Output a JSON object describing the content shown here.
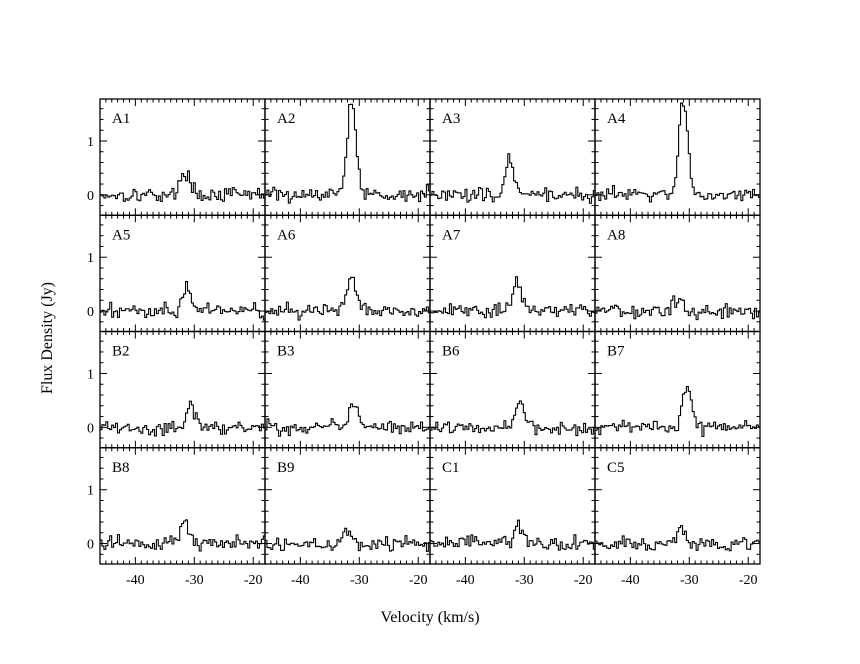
{
  "chart_data": {
    "type": "line",
    "style": "step",
    "xlabel": "Velocity (km/s)",
    "ylabel": "Flux Density (Jy)",
    "xlim": [
      -46,
      -18
    ],
    "ylim": [
      -0.38,
      1.78
    ],
    "xticks": [
      -40,
      -30,
      -20
    ],
    "xtick_labels": [
      "-40",
      "-30",
      "-20"
    ],
    "yticks": [
      0,
      1
    ],
    "ytick_labels": [
      "0",
      "1"
    ],
    "grid": "4x4",
    "shared_axes": true,
    "panels": [
      {
        "name": "A1",
        "peak_velocity": -31.5,
        "peak_flux": 0.45
      },
      {
        "name": "A2",
        "peak_velocity": -31.3,
        "peak_flux": 1.75
      },
      {
        "name": "A3",
        "peak_velocity": -32.5,
        "peak_flux": 0.65
      },
      {
        "name": "A4",
        "peak_velocity": -31.0,
        "peak_flux": 1.7
      },
      {
        "name": "A5",
        "peak_velocity": -31.3,
        "peak_flux": 0.42
      },
      {
        "name": "A6",
        "peak_velocity": -31.3,
        "peak_flux": 0.65
      },
      {
        "name": "A7",
        "peak_velocity": -31.3,
        "peak_flux": 0.55
      },
      {
        "name": "A8",
        "peak_velocity": -32.0,
        "peak_flux": 0.22
      },
      {
        "name": "B2",
        "peak_velocity": -30.5,
        "peak_flux": 0.4
      },
      {
        "name": "B3",
        "peak_velocity": -31.0,
        "peak_flux": 0.45
      },
      {
        "name": "B6",
        "peak_velocity": -30.7,
        "peak_flux": 0.5
      },
      {
        "name": "B7",
        "peak_velocity": -30.3,
        "peak_flux": 0.72
      },
      {
        "name": "B8",
        "peak_velocity": -31.7,
        "peak_flux": 0.4
      },
      {
        "name": "B9",
        "peak_velocity": -32.0,
        "peak_flux": 0.3
      },
      {
        "name": "C1",
        "peak_velocity": -31.0,
        "peak_flux": 0.3
      },
      {
        "name": "C5",
        "peak_velocity": -31.5,
        "peak_flux": 0.32
      }
    ]
  }
}
